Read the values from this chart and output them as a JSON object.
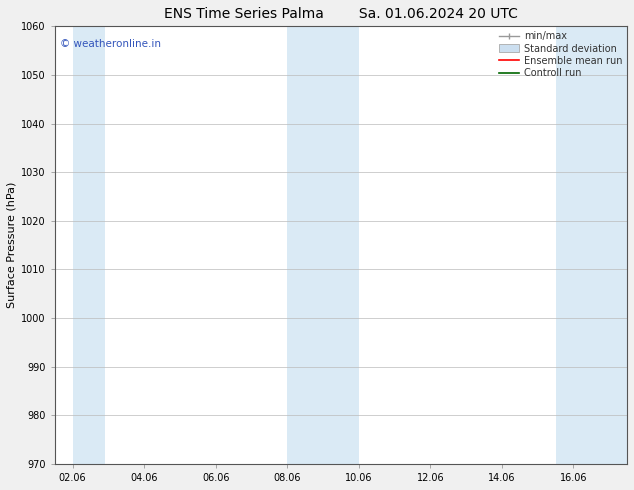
{
  "title_left": "ENS Time Series Palma",
  "title_right": "Sa. 01.06.2024 20 UTC",
  "ylabel": "Surface Pressure (hPa)",
  "ylim": [
    970,
    1060
  ],
  "yticks": [
    970,
    980,
    990,
    1000,
    1010,
    1020,
    1030,
    1040,
    1050,
    1060
  ],
  "xlim_start": 1.5,
  "xlim_end": 17.5,
  "xtick_labels": [
    "02.06",
    "04.06",
    "06.06",
    "08.06",
    "10.06",
    "12.06",
    "14.06",
    "16.06"
  ],
  "xtick_positions": [
    2,
    4,
    6,
    8,
    10,
    12,
    14,
    16
  ],
  "shaded_bands": [
    {
      "x_start": 2.0,
      "x_end": 2.9
    },
    {
      "x_start": 8.0,
      "x_end": 10.0
    },
    {
      "x_start": 15.5,
      "x_end": 17.5
    }
  ],
  "band_color": "#daeaf5",
  "watermark_text": "© weatheronline.in",
  "watermark_color": "#3355bb",
  "bg_color": "#f0f0f0",
  "plot_bg_color": "#ffffff",
  "grid_color": "#bbbbbb",
  "title_fontsize": 10,
  "axis_fontsize": 7,
  "label_fontsize": 8,
  "legend_fontsize": 7
}
